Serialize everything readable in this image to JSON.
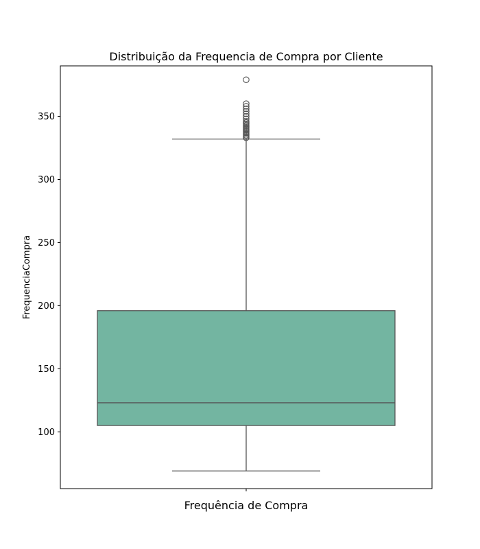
{
  "chart_data": {
    "type": "box",
    "title": "Distribuição da Frequencia de Compra por Cliente",
    "xlabel": "Frequência de Compra",
    "ylabel": "FrequenciaCompra",
    "ylim": [
      55,
      390
    ],
    "yticks": [
      100,
      150,
      200,
      250,
      300,
      350
    ],
    "grid": false,
    "legend": "none",
    "box_color": "#73b5a1",
    "line_color": "#555555",
    "boxes": [
      {
        "whisker_low": 69,
        "q1": 105,
        "median": 123,
        "q3": 196,
        "whisker_high": 332,
        "outliers": [
          333,
          334,
          335,
          336,
          337,
          338,
          339,
          340,
          341,
          342,
          343,
          344,
          345,
          346,
          348,
          350,
          352,
          354,
          356,
          358,
          360,
          379
        ]
      }
    ]
  }
}
